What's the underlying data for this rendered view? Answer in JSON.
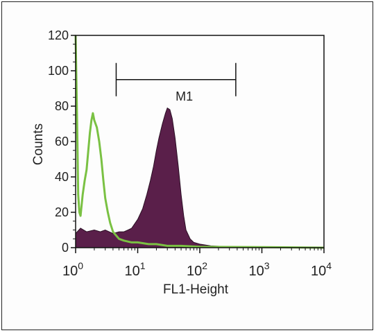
{
  "chart_data": {
    "type": "histogram",
    "xlabel": "FL1-Height",
    "ylabel": "Counts",
    "x_scale": "log",
    "xlim": [
      1,
      10000
    ],
    "ylim": [
      0,
      120
    ],
    "y_ticks": [
      "0",
      "20",
      "40",
      "60",
      "80",
      "100",
      "120"
    ],
    "x_ticks": [
      {
        "base": "10",
        "exp": "0"
      },
      {
        "base": "10",
        "exp": "1"
      },
      {
        "base": "10",
        "exp": "2"
      },
      {
        "base": "10",
        "exp": "3"
      },
      {
        "base": "10",
        "exp": "4"
      }
    ],
    "gate": {
      "label": "M1",
      "x_start": 4.5,
      "x_end": 380,
      "y": 95
    },
    "series": [
      {
        "style": "filled",
        "color": "#5a1f4a",
        "points": [
          [
            1.0,
            8
          ],
          [
            1.2,
            11
          ],
          [
            1.5,
            9
          ],
          [
            2.0,
            10
          ],
          [
            2.5,
            9
          ],
          [
            3.0,
            10
          ],
          [
            4.0,
            8
          ],
          [
            5.0,
            9
          ],
          [
            6.0,
            9
          ],
          [
            7.0,
            10
          ],
          [
            8.0,
            11
          ],
          [
            10.0,
            16
          ],
          [
            12.0,
            22
          ],
          [
            14.0,
            30
          ],
          [
            16.0,
            38
          ],
          [
            18.0,
            46
          ],
          [
            20.0,
            55
          ],
          [
            22.0,
            62
          ],
          [
            25.0,
            70
          ],
          [
            28.0,
            76
          ],
          [
            30.0,
            79
          ],
          [
            33.0,
            78
          ],
          [
            36.0,
            73
          ],
          [
            40.0,
            62
          ],
          [
            45.0,
            46
          ],
          [
            50.0,
            30
          ],
          [
            55.0,
            18
          ],
          [
            60.0,
            10
          ],
          [
            70.0,
            5
          ],
          [
            80.0,
            3
          ],
          [
            100.0,
            2
          ],
          [
            150.0,
            1
          ],
          [
            300.0,
            0.5
          ],
          [
            1000.0,
            0.2
          ],
          [
            10000.0,
            0
          ]
        ]
      },
      {
        "style": "line",
        "color": "#7ac143",
        "points": [
          [
            1.0,
            120
          ],
          [
            1.03,
            95
          ],
          [
            1.07,
            60
          ],
          [
            1.1,
            30
          ],
          [
            1.15,
            20
          ],
          [
            1.2,
            18
          ],
          [
            1.3,
            30
          ],
          [
            1.4,
            38
          ],
          [
            1.5,
            44
          ],
          [
            1.6,
            55
          ],
          [
            1.7,
            65
          ],
          [
            1.8,
            72
          ],
          [
            1.9,
            76
          ],
          [
            2.0,
            72
          ],
          [
            2.2,
            68
          ],
          [
            2.4,
            60
          ],
          [
            2.6,
            50
          ],
          [
            2.8,
            38
          ],
          [
            3.0,
            28
          ],
          [
            3.3,
            20
          ],
          [
            3.6,
            14
          ],
          [
            4.0,
            9
          ],
          [
            5.0,
            5
          ],
          [
            6.0,
            4
          ],
          [
            8.0,
            3
          ],
          [
            10.0,
            3
          ],
          [
            15.0,
            2
          ],
          [
            20.0,
            2
          ],
          [
            30.0,
            1
          ],
          [
            50.0,
            1
          ],
          [
            100.0,
            0.5
          ],
          [
            1000.0,
            0.3
          ],
          [
            10000.0,
            0
          ]
        ]
      }
    ]
  }
}
